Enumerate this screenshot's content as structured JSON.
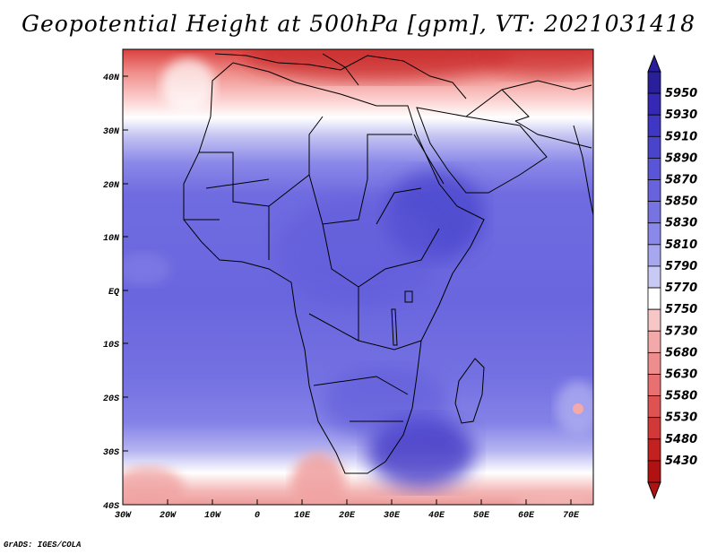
{
  "title": "Geopotential Height at 500hPa [gpm], VT: 2021031418",
  "credit": "GrADS: IGES/COLA",
  "lat_labels": [
    "40N",
    "30N",
    "20N",
    "10N",
    "EQ",
    "10S",
    "20S",
    "30S",
    "40S"
  ],
  "lon_labels": [
    "30W",
    "20W",
    "10W",
    "0",
    "10E",
    "20E",
    "30E",
    "40E",
    "50E",
    "60E",
    "70E"
  ],
  "colorbar": {
    "levels": [
      "5950",
      "5930",
      "5910",
      "5890",
      "5870",
      "5850",
      "5830",
      "5810",
      "5790",
      "5770",
      "5750",
      "5730",
      "5680",
      "5630",
      "5580",
      "5530",
      "5480",
      "5430"
    ],
    "colors": [
      "#2a1f9a",
      "#3428b4",
      "#3f36c4",
      "#4a44cc",
      "#5a55d6",
      "#6863dd",
      "#7774e2",
      "#8a88e8",
      "#a7a7ef",
      "#c9c9f6",
      "#ffffff",
      "#f7c7c7",
      "#f3a9a9",
      "#ee8d8d",
      "#e87070",
      "#df5252",
      "#d33838",
      "#c32020",
      "#b01212"
    ]
  }
}
